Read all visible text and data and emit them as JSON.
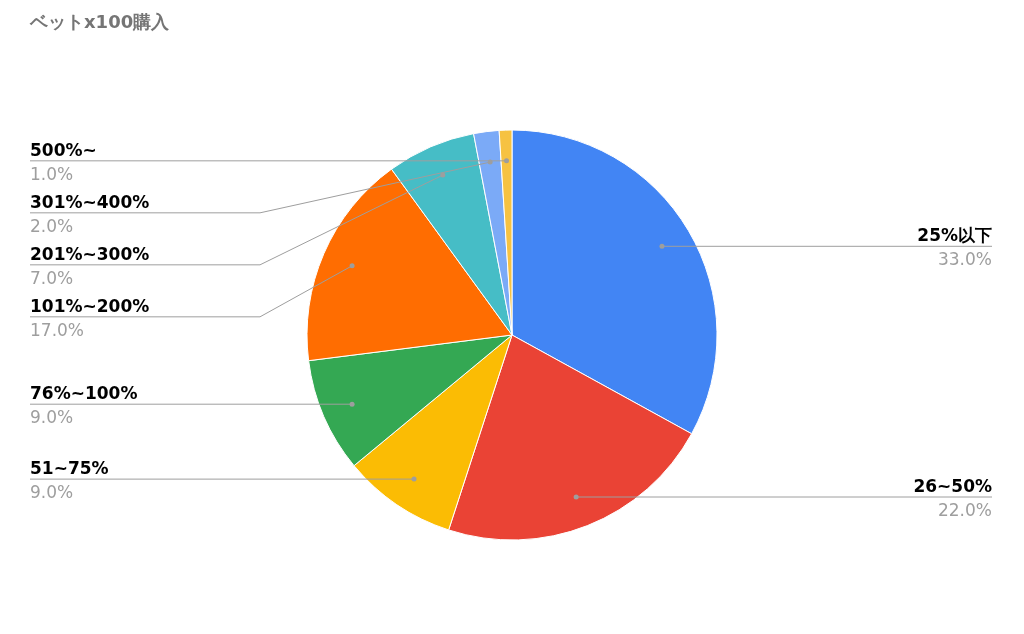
{
  "chart_data": {
    "type": "pie",
    "title": "ベットx100購入",
    "categories": [
      "25%以下",
      "26~50%",
      "51~75%",
      "76%~100%",
      "101%~200%",
      "201%~300%",
      "301%~400%",
      "500%~"
    ],
    "values": [
      33,
      22,
      9,
      9,
      17,
      7,
      2,
      1
    ],
    "colors": [
      "#4285f4",
      "#ea4335",
      "#fbbc04",
      "#34a853",
      "#ff6d01",
      "#46bdc6",
      "#7baaf7",
      "#f6c242"
    ],
    "value_labels": [
      "33.0%",
      "22.0%",
      "9.0%",
      "9.0%",
      "17.0%",
      "7.0%",
      "2.0%",
      "1.0%"
    ],
    "legend": false
  }
}
